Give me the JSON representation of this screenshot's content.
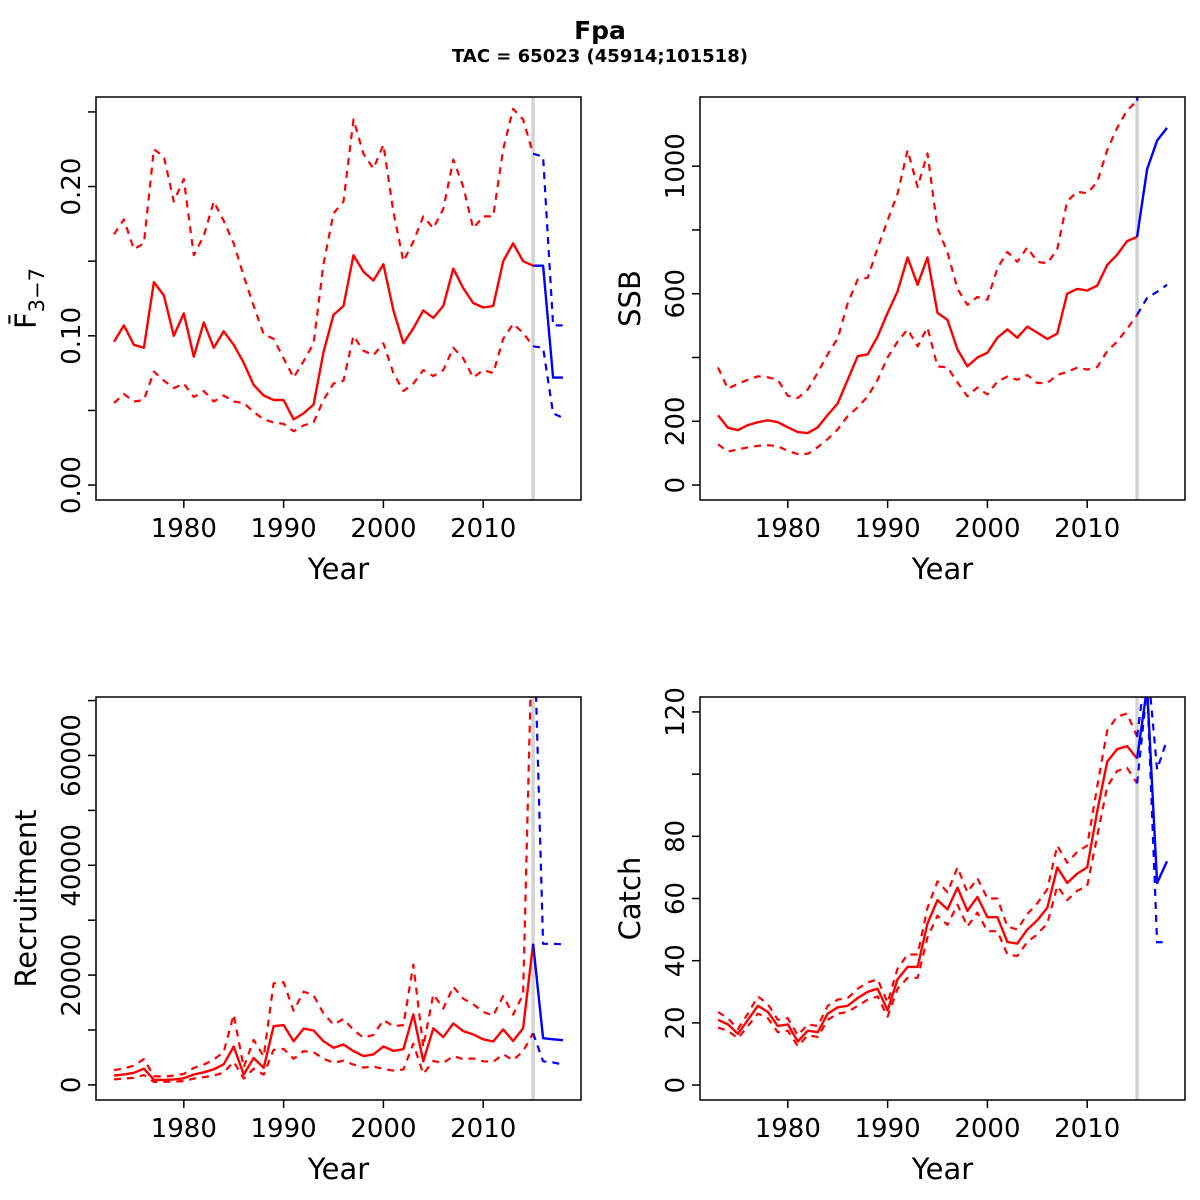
{
  "title": "Fpa",
  "subtitle": "TAC = 65023 (45914;101518)",
  "colors": {
    "history": "#ff0000",
    "forecast": "#0000ff",
    "divider": "#d3d3d3",
    "frame": "#000000",
    "text": "#000000",
    "background": "#ffffff"
  },
  "axes": {
    "xlabel": "Year",
    "xlim": [
      1971.2,
      2019.8
    ],
    "xticks": [
      {
        "v": 1980,
        "label": "1980"
      },
      {
        "v": 1990,
        "label": "1990"
      },
      {
        "v": 2000,
        "label": "2000"
      },
      {
        "v": 2010,
        "label": "2010"
      }
    ],
    "divider_year": 2015,
    "years_history": [
      1973,
      1974,
      1975,
      1976,
      1977,
      1978,
      1979,
      1980,
      1981,
      1982,
      1983,
      1984,
      1985,
      1986,
      1987,
      1988,
      1989,
      1990,
      1991,
      1992,
      1993,
      1994,
      1995,
      1996,
      1997,
      1998,
      1999,
      2000,
      2001,
      2002,
      2003,
      2004,
      2005,
      2006,
      2007,
      2008,
      2009,
      2010,
      2011,
      2012,
      2013,
      2014,
      2015
    ],
    "years_forecast": [
      2015,
      2016,
      2017,
      2018
    ]
  },
  "chart_data": [
    {
      "type": "line",
      "name": "fbar",
      "ylabel": {
        "main": "F̄",
        "sub": "3−7"
      },
      "ylim": [
        -0.01,
        0.26
      ],
      "yticks": [
        {
          "v": 0.0,
          "label": "0.00"
        },
        {
          "v": 0.05,
          "label": ""
        },
        {
          "v": 0.1,
          "label": "0.10"
        },
        {
          "v": 0.15,
          "label": ""
        },
        {
          "v": 0.2,
          "label": "0.20"
        },
        {
          "v": 0.25,
          "label": ""
        }
      ],
      "history": {
        "median": [
          0.096,
          0.107,
          0.094,
          0.092,
          0.136,
          0.127,
          0.1,
          0.115,
          0.086,
          0.109,
          0.092,
          0.103,
          0.094,
          0.082,
          0.067,
          0.06,
          0.057,
          0.057,
          0.044,
          0.048,
          0.054,
          0.089,
          0.114,
          0.12,
          0.154,
          0.143,
          0.137,
          0.148,
          0.117,
          0.095,
          0.105,
          0.117,
          0.112,
          0.12,
          0.145,
          0.132,
          0.122,
          0.119,
          0.12,
          0.15,
          0.162,
          0.15,
          0.147
        ],
        "upper": [
          0.168,
          0.178,
          0.158,
          0.162,
          0.225,
          0.22,
          0.19,
          0.205,
          0.154,
          0.167,
          0.19,
          0.177,
          0.162,
          0.14,
          0.12,
          0.101,
          0.098,
          0.085,
          0.072,
          0.083,
          0.095,
          0.148,
          0.182,
          0.19,
          0.245,
          0.222,
          0.212,
          0.228,
          0.183,
          0.15,
          0.163,
          0.18,
          0.172,
          0.185,
          0.218,
          0.2,
          0.172,
          0.18,
          0.18,
          0.225,
          0.252,
          0.245,
          0.222
        ],
        "lower": [
          0.055,
          0.061,
          0.056,
          0.057,
          0.076,
          0.07,
          0.065,
          0.068,
          0.059,
          0.063,
          0.056,
          0.06,
          0.056,
          0.055,
          0.049,
          0.044,
          0.042,
          0.041,
          0.036,
          0.04,
          0.042,
          0.057,
          0.068,
          0.07,
          0.1,
          0.09,
          0.087,
          0.095,
          0.075,
          0.063,
          0.068,
          0.077,
          0.073,
          0.077,
          0.092,
          0.085,
          0.072,
          0.077,
          0.075,
          0.098,
          0.108,
          0.102,
          0.093
        ]
      },
      "forecast": {
        "median": [
          0.147,
          0.147,
          0.072,
          0.072
        ],
        "upper": [
          0.222,
          0.22,
          0.107,
          0.107
        ],
        "lower": [
          0.093,
          0.092,
          0.048,
          0.045
        ]
      }
    },
    {
      "type": "line",
      "name": "ssb",
      "ylabel": {
        "main": "SSB"
      },
      "ylim": [
        -46.8,
        1216.8
      ],
      "yticks": [
        {
          "v": 0,
          "label": "0"
        },
        {
          "v": 200,
          "label": "200"
        },
        {
          "v": 400,
          "label": ""
        },
        {
          "v": 600,
          "label": "600"
        },
        {
          "v": 800,
          "label": ""
        },
        {
          "v": 1000,
          "label": "1000"
        }
      ],
      "history": {
        "median": [
          219,
          180,
          172,
          188,
          197,
          203,
          197,
          181,
          166,
          163,
          181,
          220,
          256,
          330,
          404,
          410,
          466,
          540,
          608,
          714,
          628,
          714,
          540,
          518,
          425,
          372,
          400,
          415,
          462,
          488,
          462,
          497,
          478,
          458,
          475,
          600,
          615,
          610,
          625,
          690,
          722,
          765,
          778
        ],
        "upper": [
          369,
          302,
          318,
          330,
          341,
          338,
          330,
          280,
          273,
          300,
          353,
          410,
          460,
          570,
          645,
          650,
          743,
          830,
          914,
          1050,
          935,
          1040,
          805,
          730,
          615,
          565,
          590,
          581,
          680,
          731,
          700,
          745,
          700,
          695,
          740,
          890,
          920,
          915,
          950,
          1050,
          1120,
          1175,
          1205
        ],
        "lower": [
          128,
          105,
          112,
          118,
          123,
          125,
          122,
          107,
          97,
          98,
          119,
          144,
          175,
          216,
          244,
          278,
          330,
          400,
          450,
          488,
          435,
          494,
          372,
          369,
          322,
          278,
          306,
          284,
          325,
          340,
          330,
          345,
          320,
          320,
          345,
          355,
          368,
          362,
          370,
          420,
          450,
          490,
          534
        ]
      },
      "forecast": {
        "median": [
          778,
          990,
          1080,
          1120
        ],
        "upper": [
          1205,
          1600,
          1600,
          1600
        ],
        "lower": [
          534,
          587,
          606,
          628
        ]
      }
    },
    {
      "type": "line",
      "name": "recruitment",
      "ylabel": {
        "main": "Recruitment"
      },
      "ylim": [
        -2750,
        70650
      ],
      "yticks": [
        {
          "v": 0,
          "label": "0"
        },
        {
          "v": 10000,
          "label": ""
        },
        {
          "v": 20000,
          "label": "20000"
        },
        {
          "v": 30000,
          "label": ""
        },
        {
          "v": 40000,
          "label": "40000"
        },
        {
          "v": 50000,
          "label": ""
        },
        {
          "v": 60000,
          "label": "60000"
        },
        {
          "v": 70000,
          "label": ""
        }
      ],
      "history": {
        "median": [
          1700,
          1900,
          2200,
          2950,
          950,
          900,
          1000,
          1200,
          1900,
          2300,
          2850,
          3750,
          7000,
          1900,
          4900,
          3100,
          10700,
          10900,
          7950,
          10250,
          9900,
          7950,
          6750,
          7350,
          6150,
          5250,
          5550,
          7000,
          6200,
          6500,
          12850,
          4300,
          10300,
          8700,
          11200,
          9800,
          9200,
          8300,
          7900,
          10100,
          8000,
          10300,
          25700
        ],
        "upper": [
          2700,
          3000,
          3500,
          4700,
          1600,
          1500,
          1700,
          2000,
          3100,
          3700,
          4600,
          6000,
          12800,
          3200,
          8200,
          5200,
          18500,
          18700,
          13500,
          17000,
          16300,
          13000,
          11000,
          12000,
          10000,
          8600,
          9100,
          11800,
          10700,
          10900,
          21900,
          6900,
          16500,
          13900,
          17900,
          15700,
          14700,
          13300,
          12600,
          16200,
          12800,
          16500,
          90000
        ],
        "lower": [
          1000,
          1150,
          1300,
          1800,
          550,
          550,
          600,
          700,
          1150,
          1400,
          1700,
          2250,
          4200,
          1150,
          2950,
          1850,
          6400,
          6550,
          4750,
          6150,
          5950,
          4750,
          4050,
          4400,
          3700,
          3150,
          3350,
          2900,
          2600,
          2800,
          7500,
          2000,
          4350,
          4000,
          5250,
          4700,
          4800,
          4300,
          4200,
          5600,
          4500,
          6150,
          9400
        ]
      },
      "forecast": {
        "median": [
          25700,
          8500,
          8300,
          8150
        ],
        "upper": [
          90000,
          25700,
          25700,
          25600
        ],
        "lower": [
          9400,
          4300,
          4100,
          3700
        ]
      }
    },
    {
      "type": "line",
      "name": "catch",
      "ylabel": {
        "main": "Catch"
      },
      "ylim": [
        -4.8,
        124.8
      ],
      "yticks": [
        {
          "v": 0,
          "label": "0"
        },
        {
          "v": 20,
          "label": "20"
        },
        {
          "v": 40,
          "label": "40"
        },
        {
          "v": 60,
          "label": "60"
        },
        {
          "v": 80,
          "label": "80"
        },
        {
          "v": 100,
          "label": ""
        },
        {
          "v": 120,
          "label": "120"
        }
      ],
      "history": {
        "median": [
          21,
          19.5,
          16.5,
          21,
          25.5,
          23.5,
          19,
          19.5,
          14,
          17.5,
          17,
          23,
          25,
          25.5,
          28,
          30,
          31,
          24,
          34,
          38,
          38,
          52,
          59.5,
          56.5,
          63.5,
          56,
          60.5,
          54,
          54,
          46,
          45.5,
          50,
          53,
          57,
          70,
          65,
          68,
          70,
          88,
          104,
          108,
          109,
          105
        ],
        "upper": [
          23.5,
          21.5,
          18,
          23,
          28.5,
          26,
          21,
          21.5,
          16,
          19.5,
          19,
          25.5,
          27.5,
          28,
          31,
          33,
          34,
          26.5,
          37.5,
          42,
          42,
          57,
          65.5,
          62,
          70,
          62,
          66.5,
          60,
          60,
          51,
          50,
          55,
          58.5,
          63,
          77,
          71.5,
          75,
          77,
          96,
          114,
          118.5,
          119.5,
          112
        ],
        "lower": [
          18.5,
          17.5,
          15,
          19,
          23,
          21.5,
          17,
          17.5,
          12.5,
          16,
          15.5,
          21,
          23,
          23.5,
          25.5,
          27.5,
          28.5,
          22,
          31,
          34.5,
          34.5,
          47.5,
          54.5,
          51.5,
          58,
          51,
          55.5,
          49.5,
          49.5,
          42,
          41.5,
          46,
          48.5,
          52,
          64,
          59.5,
          62.5,
          64,
          80,
          96,
          101,
          102,
          97
        ]
      },
      "forecast": {
        "median": [
          105,
          128,
          65,
          72
        ],
        "upper": [
          112,
          137,
          101.5,
          111
        ],
        "lower": [
          97,
          128,
          45.9,
          46
        ]
      }
    }
  ]
}
